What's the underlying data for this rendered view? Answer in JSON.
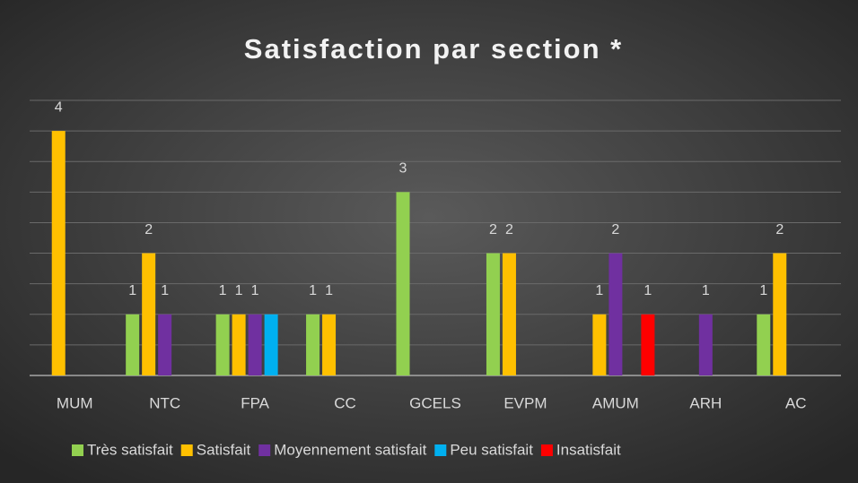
{
  "chart_data": {
    "type": "bar",
    "title": "Satisfaction par section *",
    "categories": [
      "MUM",
      "NTC",
      "FPA",
      "CC",
      "GCELS",
      "EVPM",
      "AMUM",
      "ARH",
      "AC"
    ],
    "series": [
      {
        "name": "Très satisfait",
        "color": "#92d050",
        "values": [
          null,
          1,
          1,
          1,
          3,
          2,
          null,
          null,
          1
        ]
      },
      {
        "name": "Satisfait",
        "color": "#ffc000",
        "values": [
          4,
          2,
          1,
          1,
          null,
          2,
          1,
          null,
          2
        ]
      },
      {
        "name": "Moyennement satisfait",
        "color": "#7030a0",
        "values": [
          null,
          1,
          1,
          null,
          null,
          null,
          2,
          1,
          null
        ]
      },
      {
        "name": "Peu satisfait",
        "color": "#00b0f0",
        "values": [
          null,
          null,
          1,
          null,
          null,
          null,
          null,
          null,
          null
        ],
        "show_labels": false
      },
      {
        "name": "Insatisfait",
        "color": "#ff0000",
        "values": [
          null,
          null,
          null,
          null,
          null,
          null,
          1,
          null,
          null
        ]
      }
    ],
    "ylim": [
      0,
      4.5
    ],
    "yticks": [
      0,
      0.5,
      1,
      1.5,
      2,
      2.5,
      3,
      3.5,
      4,
      4.5
    ],
    "grid": true,
    "legend": "bottom"
  }
}
